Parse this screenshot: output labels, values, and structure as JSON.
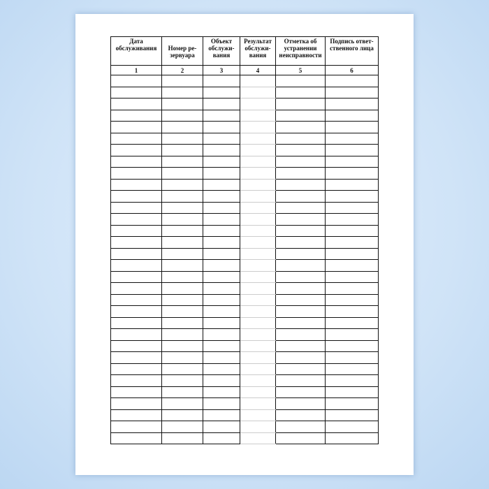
{
  "table": {
    "headers": [
      "Дата обслуживания",
      "Номер ре-зервуара",
      "Объект обслужи-вания",
      "Результат обслужи-вания",
      "Отметка об устранении неисправности",
      "Подпись ответ-ственного лица"
    ],
    "column_numbers": [
      "1",
      "2",
      "3",
      "4",
      "5",
      "6"
    ]
  }
}
